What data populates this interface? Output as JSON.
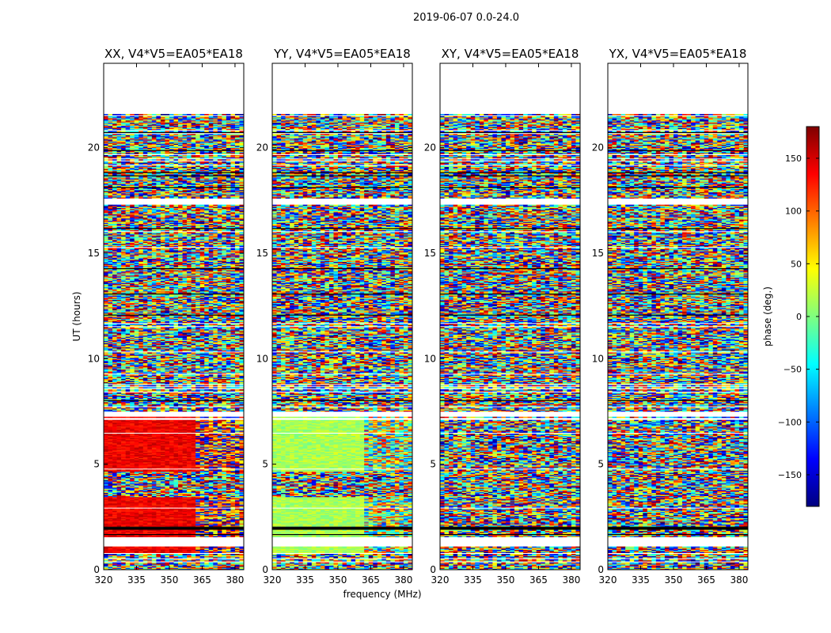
{
  "chart_data": {
    "type": "heatmap",
    "suptitle": "2019-06-07 0.0-24.0",
    "xlabel": "frequency (MHz)",
    "ylabel": "UT (hours)",
    "xlim": [
      320,
      384
    ],
    "ylim": [
      0,
      24
    ],
    "xticks": [
      320,
      335,
      350,
      365,
      380
    ],
    "yticks": [
      0,
      5,
      10,
      15,
      20
    ],
    "data_time_range": [
      0.0,
      21.6
    ],
    "colorbar": {
      "label": "phase (deg.)",
      "range": [
        -180,
        180
      ],
      "ticks": [
        -150,
        -100,
        -50,
        0,
        50,
        100,
        150
      ],
      "tick_labels": [
        "−150",
        "−100",
        "−50",
        "0",
        "50",
        "100",
        "150"
      ],
      "colormap": "jet"
    },
    "panels": [
      {
        "title": "XX, V4*V5=EA05*EA18",
        "coherent_phase_deg": 140
      },
      {
        "title": "YY, V4*V5=EA05*EA18",
        "coherent_phase_deg": 15
      },
      {
        "title": "XY, V4*V5=EA05*EA18",
        "coherent_phase_deg": null
      },
      {
        "title": "YX, V4*V5=EA05*EA18",
        "coherent_phase_deg": null
      }
    ],
    "coherent_time_ranges": [
      [
        0.8,
        3.4
      ],
      [
        4.6,
        7.2
      ]
    ],
    "flagged_time_ranges": [
      [
        1.1,
        1.5
      ],
      [
        7.2,
        7.45
      ],
      [
        17.3,
        17.6
      ],
      [
        21.6,
        24.0
      ]
    ]
  },
  "colors": {
    "jet": [
      "#00007f",
      "#0000ff",
      "#007fff",
      "#00ffff",
      "#7fff7f",
      "#ffff00",
      "#ff7f00",
      "#ff0000",
      "#7f0000"
    ]
  }
}
